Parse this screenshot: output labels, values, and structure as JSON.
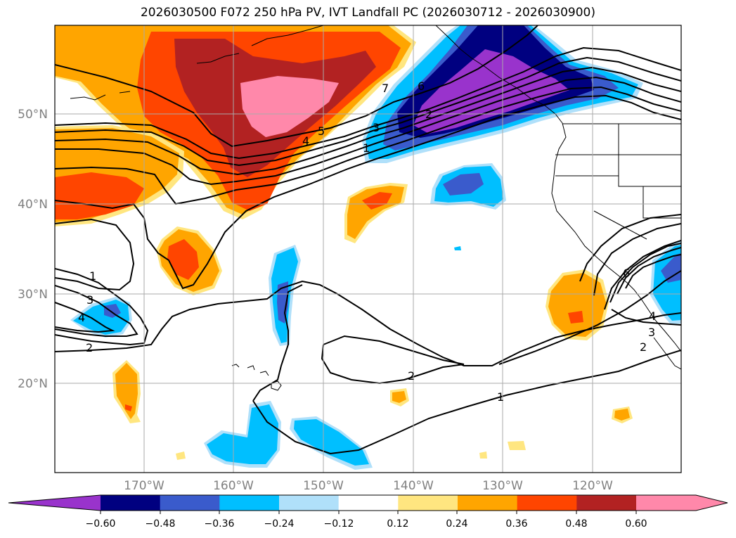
{
  "title": "2026030500 F072 250 hPa PV, IVT Landfall PC (2026030712 - 2026030900)",
  "lat_labels": [
    "50°N",
    "40°N",
    "30°N",
    "20°N"
  ],
  "lon_labels": [
    "170°W",
    "160°W",
    "150°W",
    "140°W",
    "130°W",
    "120°W"
  ],
  "contour_labels": [
    "7",
    "6",
    "5",
    "4",
    "3",
    "2",
    "1",
    "1",
    "3",
    "4",
    "2",
    "2",
    "1",
    "6",
    "4",
    "3",
    "2"
  ],
  "colorbar": {
    "ticks": [
      "−0.60",
      "−0.48",
      "−0.36",
      "−0.24",
      "−0.12",
      "0.12",
      "0.24",
      "0.36",
      "0.48",
      "0.60"
    ],
    "colors": [
      "#9933cc",
      "#000080",
      "#3a5bcc",
      "#00bfff",
      "#b0e0fa",
      "#ffffff",
      "#ffe680",
      "#ffa500",
      "#ff4500",
      "#b22222",
      "#ff88aa",
      "#ff88aa"
    ]
  }
}
